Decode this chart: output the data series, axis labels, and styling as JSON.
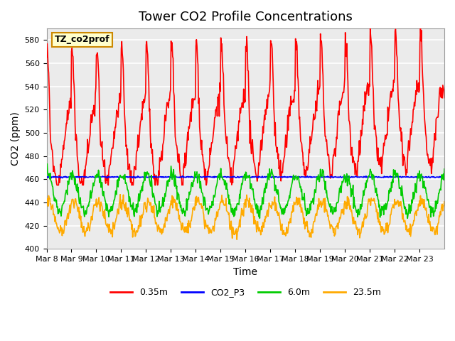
{
  "title": "Tower CO2 Profile Concentrations",
  "xlabel": "Time",
  "ylabel": "CO2 (ppm)",
  "ylim": [
    400,
    590
  ],
  "yticks": [
    400,
    420,
    440,
    460,
    480,
    500,
    520,
    540,
    560,
    580
  ],
  "num_days": 16,
  "start_day": 8,
  "xtick_labels": [
    "Mar 8",
    "Mar 9",
    "Mar 10",
    "Mar 11",
    "Mar 12",
    "Mar 13",
    "Mar 14",
    "Mar 15",
    "Mar 16",
    "Mar 17",
    "Mar 18",
    "Mar 19",
    "Mar 20",
    "Mar 21",
    "Mar 22",
    "Mar 23"
  ],
  "series": {
    "0.35m": {
      "color": "#ff0000",
      "linewidth": 1.2
    },
    "CO2_P3": {
      "color": "#0000ff",
      "linewidth": 1.2
    },
    "6.0m": {
      "color": "#00cc00",
      "linewidth": 1.2
    },
    "23.5m": {
      "color": "#ffaa00",
      "linewidth": 1.2
    }
  },
  "watermark": "TZ_co2prof",
  "watermark_facecolor": "#ffffcc",
  "watermark_edgecolor": "#cc8800",
  "plot_background": "#ebebeb",
  "grid_color": "#ffffff",
  "title_fontsize": 13,
  "axis_label_fontsize": 10,
  "tick_fontsize": 8
}
